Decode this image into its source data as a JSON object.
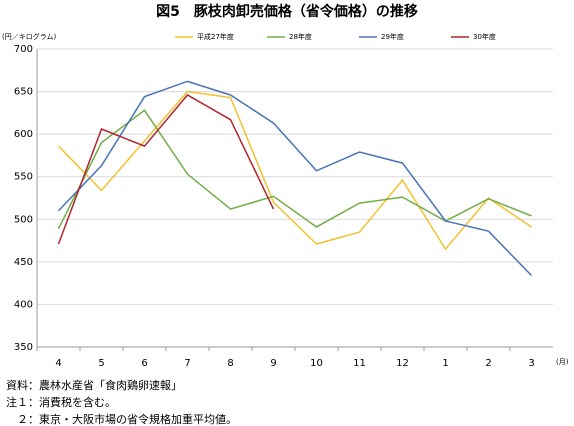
{
  "chart_data": {
    "type": "line",
    "title": "図5　豚枝肉卸売価格（省令価格）の推移",
    "y_label": "(円／キログラム)",
    "x_label": "(月)",
    "categories": [
      "4",
      "5",
      "6",
      "7",
      "8",
      "9",
      "10",
      "11",
      "12",
      "1",
      "2",
      "3"
    ],
    "series": [
      {
        "name": "平成27年度",
        "color": "#f2c12e",
        "values": [
          586,
          534,
          592,
          650,
          643,
          520,
          471,
          485,
          546,
          465,
          525,
          491
        ]
      },
      {
        "name": "28年度",
        "color": "#70ad47",
        "values": [
          489,
          590,
          628,
          553,
          512,
          527,
          491,
          519,
          526,
          498,
          524,
          504
        ]
      },
      {
        "name": "29年度",
        "color": "#4a72b8",
        "values": [
          510,
          563,
          644,
          662,
          646,
          613,
          557,
          579,
          566,
          498,
          486,
          434
        ]
      },
      {
        "name": "30年度",
        "color": "#b0262e",
        "values": [
          471,
          606,
          586,
          646,
          617,
          512,
          null,
          null,
          null,
          null,
          null,
          null
        ]
      }
    ],
    "ylim": [
      350,
      700
    ],
    "yticks": [
      350,
      400,
      450,
      500,
      550,
      600,
      650,
      700
    ],
    "grid": true,
    "legend": "top",
    "notes": [
      "資料：農林水産省「食肉鶏卵速報」",
      "注１：消費税を含む。",
      "　２：東京・大阪市場の省令規格加重平均値。"
    ]
  }
}
